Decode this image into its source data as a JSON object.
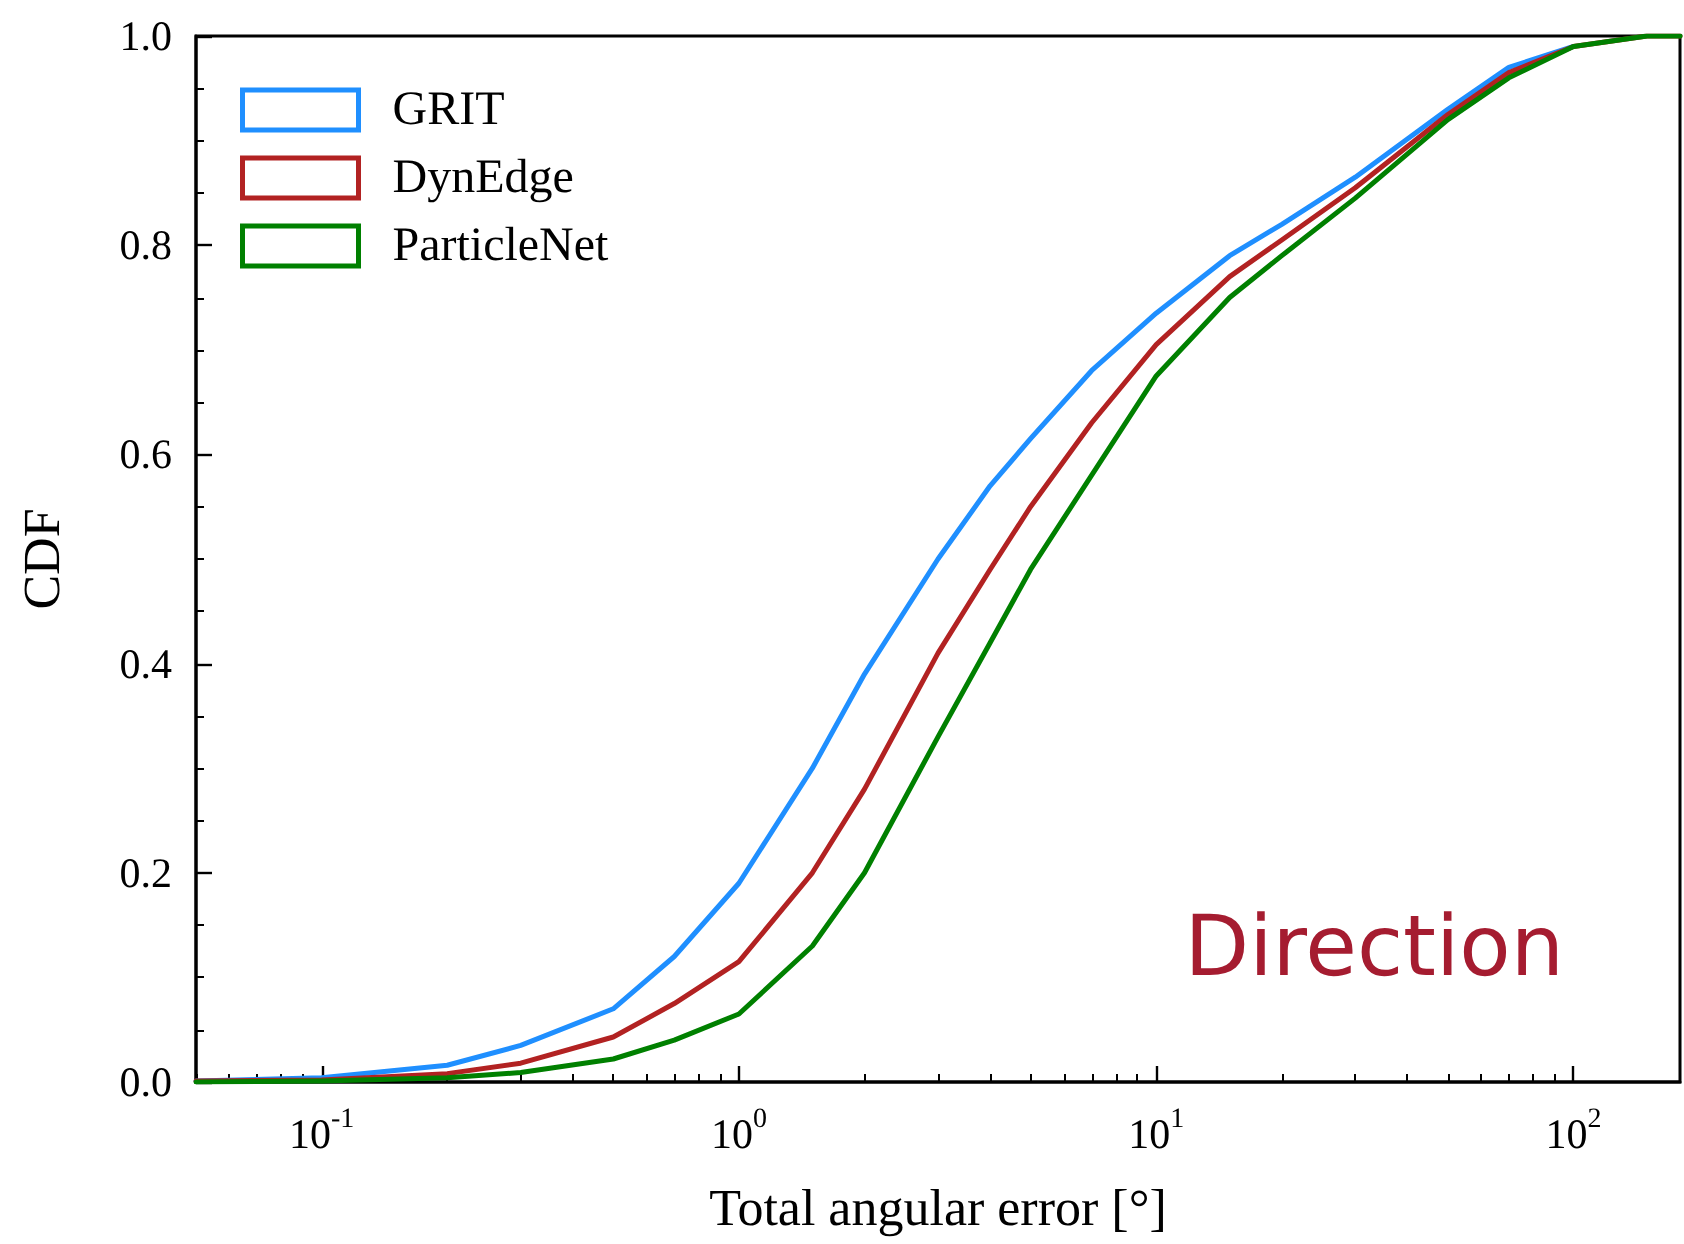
{
  "chart_data": {
    "type": "line",
    "xlabel": "Total angular error [°]",
    "ylabel": "CDF",
    "log": "x",
    "x": [
      0.05,
      0.1,
      0.2,
      0.3,
      0.5,
      0.7,
      1,
      1.5,
      2,
      3,
      4,
      5,
      7,
      10,
      15,
      20,
      30,
      50,
      70,
      100,
      150,
      180
    ],
    "series": [
      {
        "name": "GRIT",
        "color": "#1f8fff",
        "values": [
          0.001,
          0.004,
          0.016,
          0.035,
          0.07,
          0.12,
          0.19,
          0.3,
          0.39,
          0.5,
          0.57,
          0.615,
          0.68,
          0.735,
          0.79,
          0.82,
          0.865,
          0.93,
          0.97,
          0.99,
          null,
          null
        ]
      },
      {
        "name": "DynEdge",
        "color": "#b22222",
        "values": [
          0.001,
          0.002,
          0.008,
          0.018,
          0.043,
          0.075,
          0.115,
          0.2,
          0.28,
          0.41,
          0.49,
          0.55,
          0.63,
          0.705,
          0.77,
          0.805,
          0.855,
          0.925,
          0.965,
          0.99,
          1.0,
          1.0
        ]
      },
      {
        "name": "ParticleNet",
        "color": "#008000",
        "values": [
          0,
          0.001,
          0.004,
          0.009,
          0.022,
          0.04,
          0.065,
          0.13,
          0.2,
          0.33,
          0.42,
          0.49,
          0.58,
          0.675,
          0.75,
          0.79,
          0.845,
          0.92,
          0.96,
          0.99,
          1.0,
          1.0
        ]
      }
    ],
    "xlim": [
      0.05,
      180
    ],
    "xticks": [
      {
        "value": 0.1,
        "label": "10$^{-1}$"
      },
      {
        "value": 1,
        "label": "10$^{0}$"
      },
      {
        "value": 10,
        "label": "10$^{1}$"
      },
      {
        "value": 100,
        "label": "10$^{2}$"
      }
    ],
    "ylim": [
      0,
      1
    ],
    "yticks": [
      {
        "value": 0,
        "label": "0.0"
      },
      {
        "value": 0.2,
        "label": "0.2"
      },
      {
        "value": 0.4,
        "label": "0.4"
      },
      {
        "value": 0.6,
        "label": "0.6"
      },
      {
        "value": 0.8,
        "label": "0.8"
      },
      {
        "value": 1,
        "label": "1.0"
      }
    ],
    "legend": "top left",
    "annotations": [
      "Direction"
    ]
  }
}
